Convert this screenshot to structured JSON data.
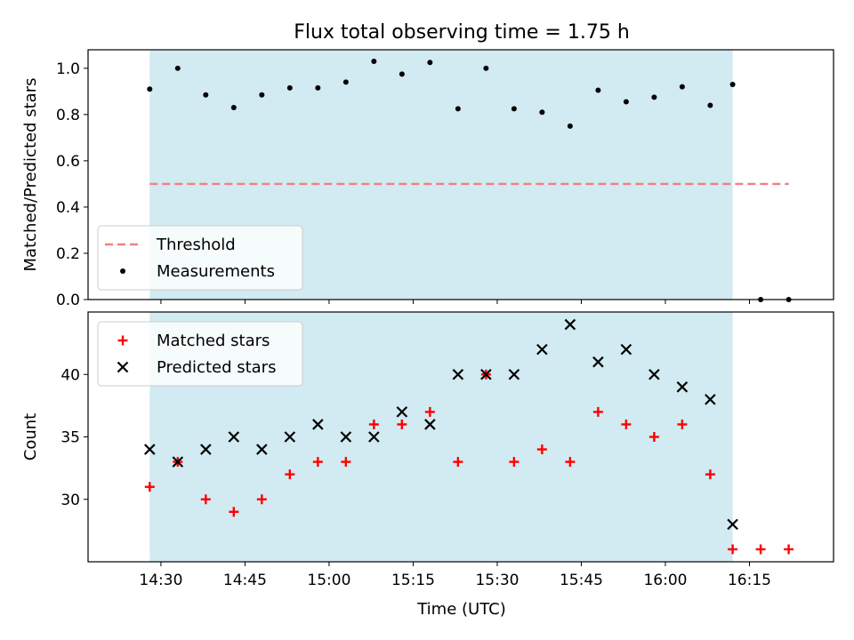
{
  "chart_data": {
    "title": "Flux total observing time = 1.75 h",
    "x_axis": {
      "label": "Time (UTC)",
      "range": [
        "14:17",
        "16:30"
      ],
      "ticks": [
        "14:30",
        "14:45",
        "15:00",
        "15:15",
        "15:30",
        "15:45",
        "16:00",
        "16:15"
      ]
    },
    "shaded_interval": {
      "start": "14:28",
      "end": "16:12",
      "color": "#add8e6"
    },
    "panels": [
      {
        "type": "scatter",
        "ylabel": "Matched/Predicted stars",
        "ylim": [
          0,
          1.08
        ],
        "yticks": [
          "0.0",
          "0.2",
          "0.4",
          "0.6",
          "0.8",
          "1.0"
        ],
        "legend_position": "lower-left",
        "series": [
          {
            "name": "Threshold",
            "kind": "dashed-line",
            "color": "#f08080",
            "x": [
              "14:28",
              "16:22"
            ],
            "y": [
              0.5,
              0.5
            ]
          },
          {
            "name": "Measurements",
            "kind": "dot",
            "color": "#000000",
            "x": [
              "14:28",
              "14:33",
              "14:38",
              "14:43",
              "14:48",
              "14:53",
              "14:58",
              "15:03",
              "15:08",
              "15:13",
              "15:18",
              "15:23",
              "15:28",
              "15:33",
              "15:38",
              "15:43",
              "15:48",
              "15:53",
              "15:58",
              "16:03",
              "16:08",
              "16:12",
              "16:17",
              "16:22"
            ],
            "y": [
              0.91,
              1.0,
              0.885,
              0.83,
              0.885,
              0.915,
              0.915,
              0.94,
              1.03,
              0.975,
              1.025,
              0.825,
              1.0,
              0.825,
              0.81,
              0.75,
              0.905,
              0.855,
              0.875,
              0.92,
              0.84,
              0.93,
              0.0,
              0.0
            ]
          }
        ]
      },
      {
        "type": "scatter",
        "ylabel": "Count",
        "ylim": [
          25,
          45
        ],
        "yticks": [
          "30",
          "35",
          "40"
        ],
        "legend_position": "top-left",
        "series": [
          {
            "name": "Matched stars",
            "kind": "plus",
            "color": "#ff0000",
            "x": [
              "14:28",
              "14:33",
              "14:38",
              "14:43",
              "14:48",
              "14:53",
              "14:58",
              "15:03",
              "15:08",
              "15:13",
              "15:18",
              "15:23",
              "15:28",
              "15:33",
              "15:38",
              "15:43",
              "15:48",
              "15:53",
              "15:58",
              "16:03",
              "16:08",
              "16:12",
              "16:17",
              "16:22"
            ],
            "y": [
              31,
              33,
              30,
              29,
              30,
              32,
              33,
              33,
              36,
              36,
              37,
              33,
              40,
              33,
              34,
              33,
              37,
              36,
              35,
              36,
              32,
              26,
              26,
              26
            ]
          },
          {
            "name": "Predicted stars",
            "kind": "cross",
            "color": "#000000",
            "x": [
              "14:28",
              "14:33",
              "14:38",
              "14:43",
              "14:48",
              "14:53",
              "14:58",
              "15:03",
              "15:08",
              "15:13",
              "15:18",
              "15:23",
              "15:28",
              "15:33",
              "15:38",
              "15:43",
              "15:48",
              "15:53",
              "15:58",
              "16:03",
              "16:08",
              "16:12"
            ],
            "y": [
              34,
              33,
              34,
              35,
              34,
              35,
              36,
              35,
              35,
              37,
              36,
              40,
              40,
              40,
              42,
              44,
              41,
              42,
              40,
              39,
              38,
              28
            ]
          }
        ]
      }
    ]
  }
}
